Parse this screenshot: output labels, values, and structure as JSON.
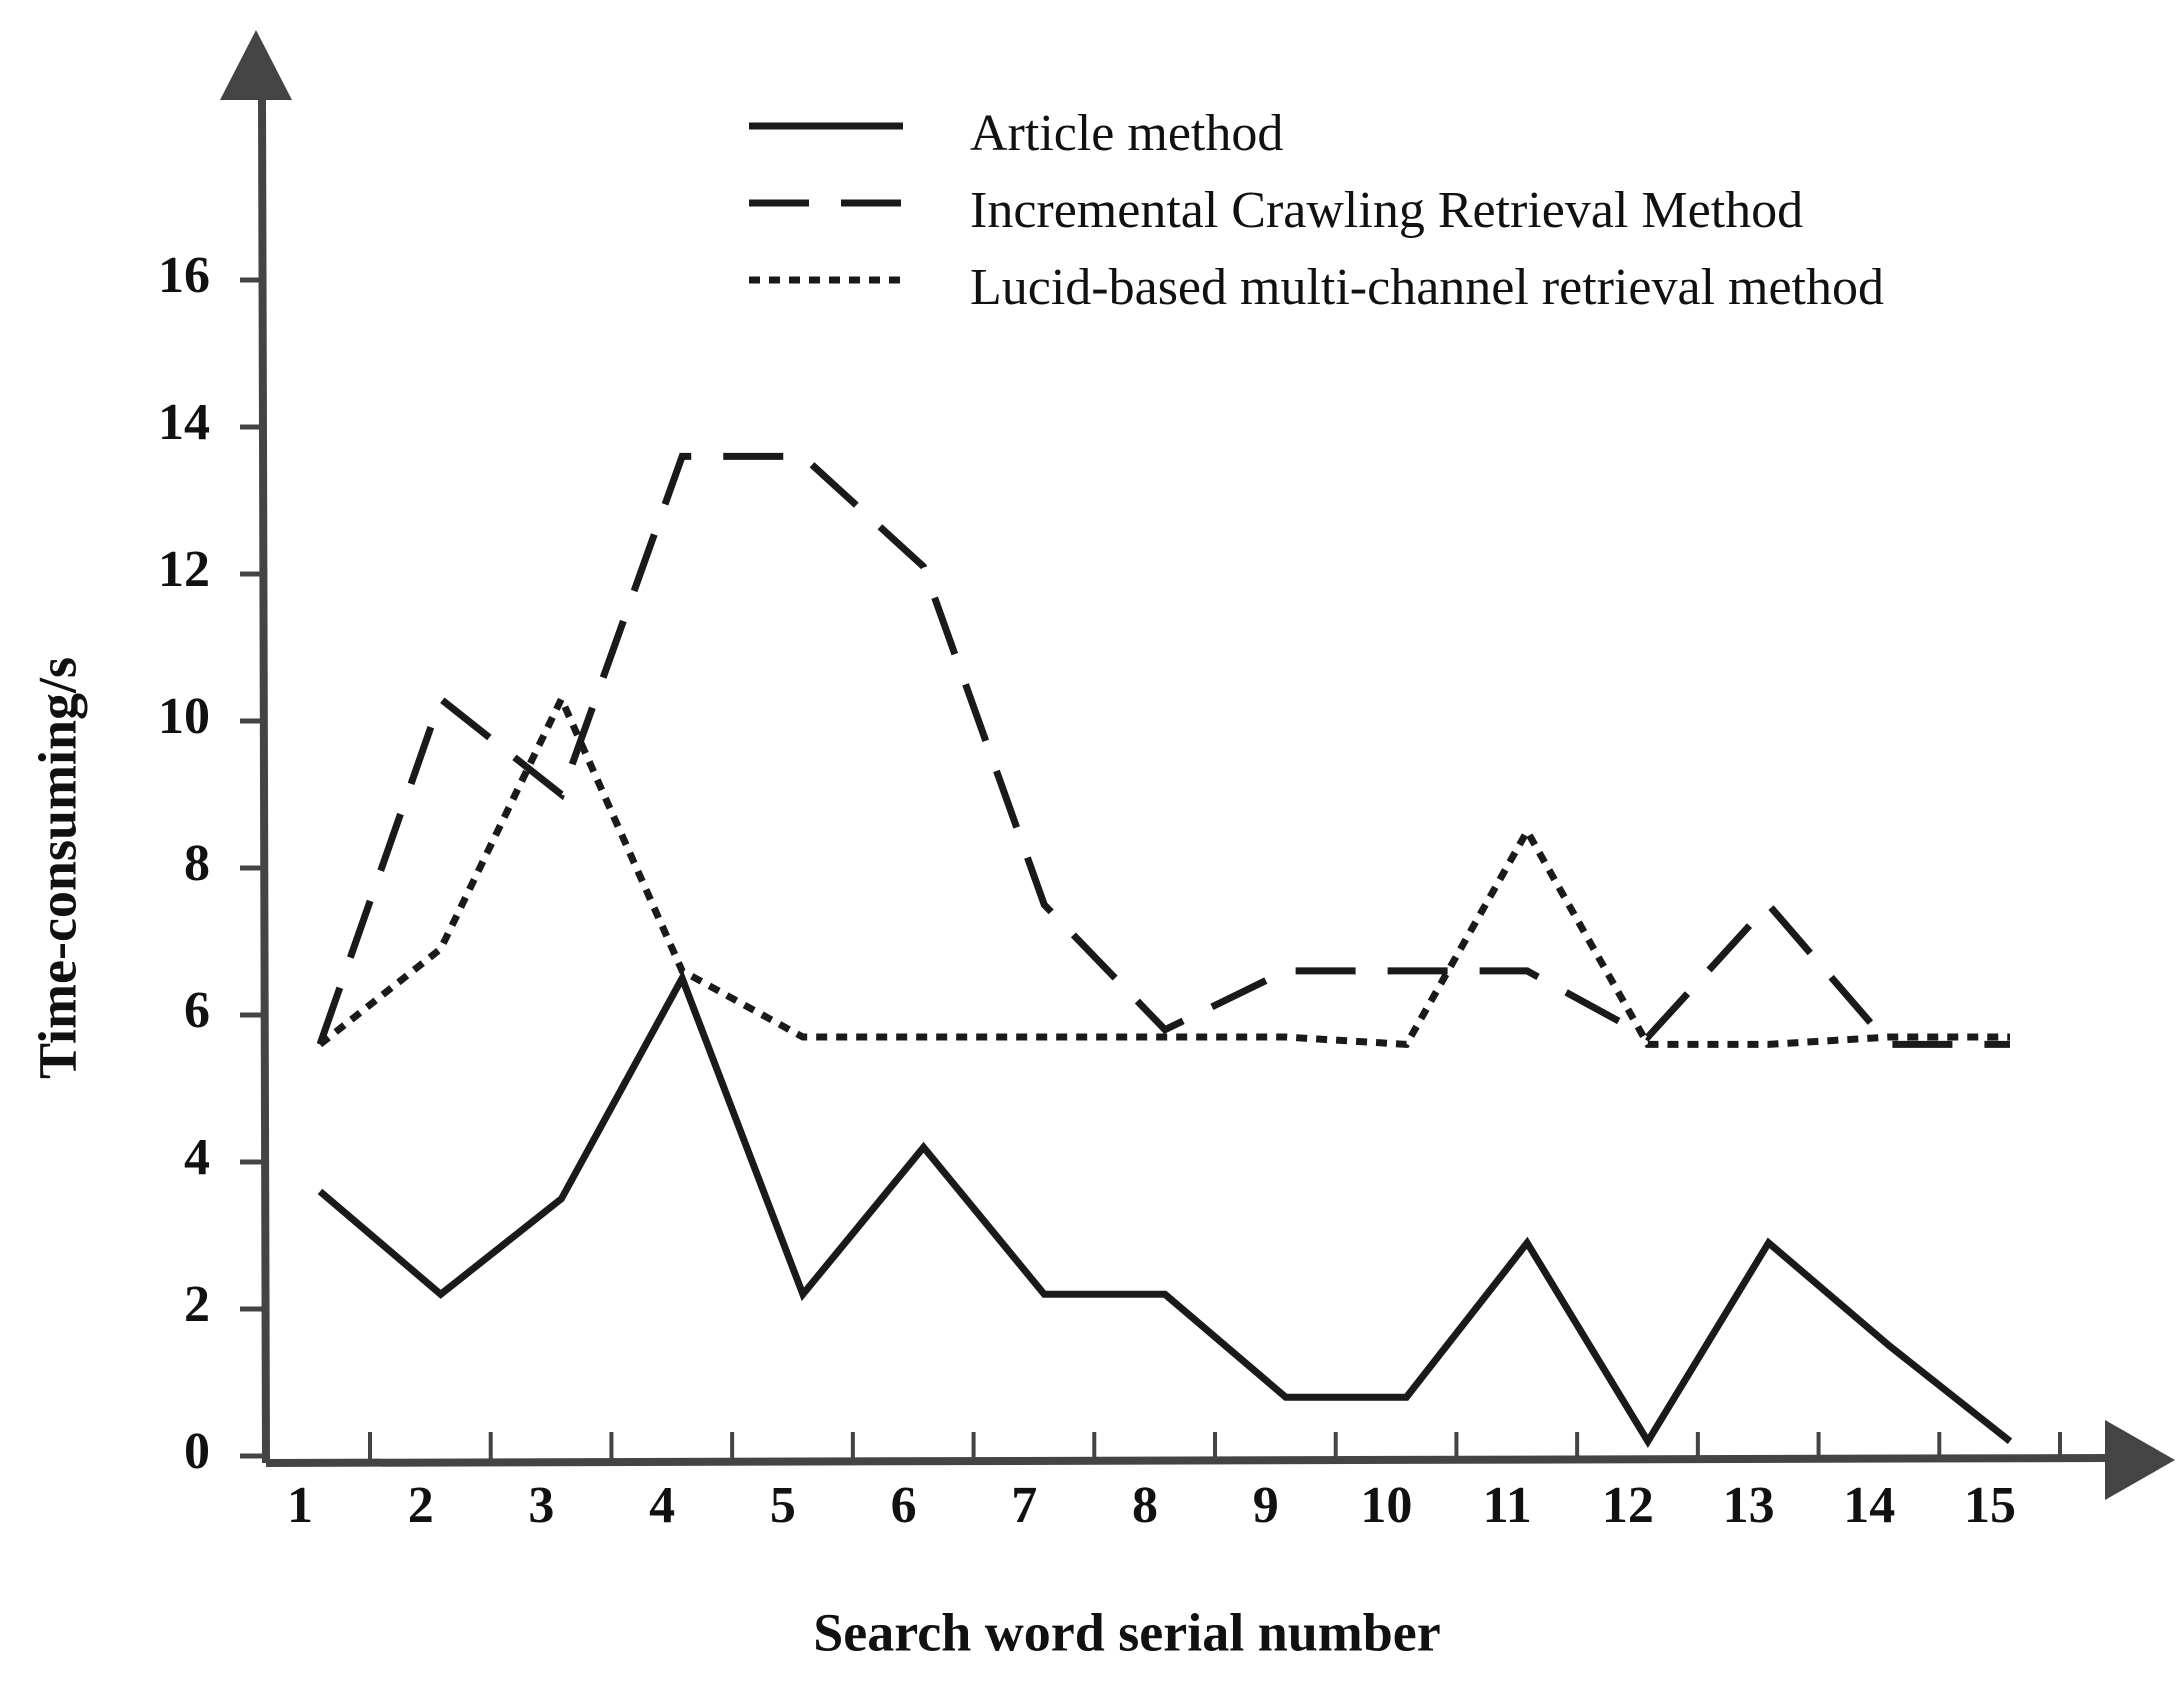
{
  "chart_data": {
    "type": "line",
    "x_label": "Search word serial number",
    "y_label": "Time-consuming/s",
    "categories": [
      "1",
      "2",
      "3",
      "4",
      "5",
      "6",
      "7",
      "8",
      "9",
      "10",
      "11",
      "12",
      "13",
      "14",
      "15"
    ],
    "ylim": [
      0,
      19
    ],
    "yticks": [
      0,
      2,
      4,
      6,
      8,
      10,
      12,
      14,
      16
    ],
    "series": [
      {
        "name": "Article method",
        "color": "#1a1a1a",
        "dash": "solid",
        "values": [
          3.6,
          2.2,
          3.5,
          6.5,
          2.2,
          4.2,
          2.2,
          2.2,
          0.8,
          0.8,
          2.9,
          0.2,
          2.9,
          1.5,
          0.2
        ]
      },
      {
        "name": "Incremental Crawling Retrieval Method",
        "color": "#1a1a1a",
        "dash": "dashed",
        "values": [
          5.6,
          10.3,
          9.0,
          13.6,
          13.6,
          12.1,
          7.5,
          5.8,
          6.6,
          6.6,
          6.6,
          5.7,
          7.5,
          5.6,
          5.6
        ]
      },
      {
        "name": "Lucid-based multi-channel retrieval method",
        "color": "#1a1a1a",
        "dash": "dotted",
        "values": [
          5.6,
          6.9,
          10.3,
          6.6,
          5.7,
          5.7,
          5.7,
          5.7,
          5.7,
          5.6,
          8.5,
          5.6,
          5.6,
          5.7,
          5.7
        ]
      }
    ]
  }
}
